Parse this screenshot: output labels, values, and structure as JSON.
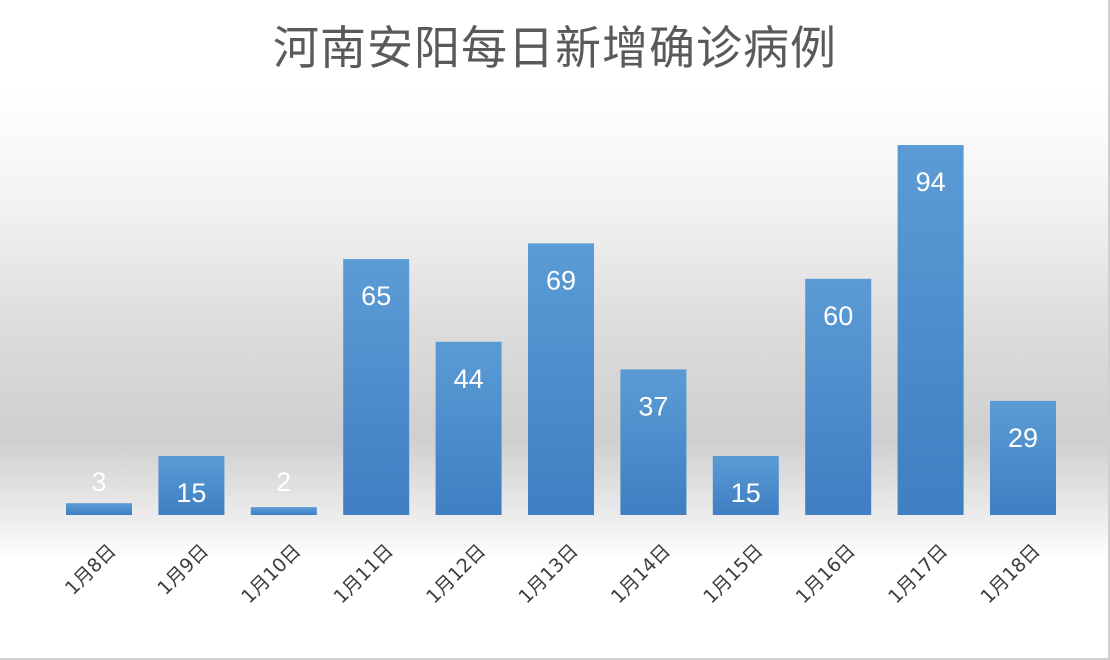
{
  "chart_data": {
    "type": "bar",
    "title": "河南安阳每日新增确诊病例",
    "categories": [
      "1月8日",
      "1月9日",
      "1月10日",
      "1月11日",
      "1月12日",
      "1月13日",
      "1月14日",
      "1月15日",
      "1月16日",
      "1月17日",
      "1月18日"
    ],
    "values": [
      3,
      15,
      2,
      65,
      44,
      69,
      37,
      15,
      60,
      94,
      29
    ],
    "data_labels": [
      "3",
      "15",
      "2",
      "65",
      "44",
      "69",
      "37",
      "15",
      "60",
      "94",
      "29"
    ],
    "xlabel": "",
    "ylabel": "",
    "ylim": [
      0,
      94
    ],
    "grid": false,
    "legend": "none",
    "bar_color_top": "#5b9bd5",
    "bar_color_bottom": "#3f7fc2",
    "label_color": "#ffffff"
  }
}
